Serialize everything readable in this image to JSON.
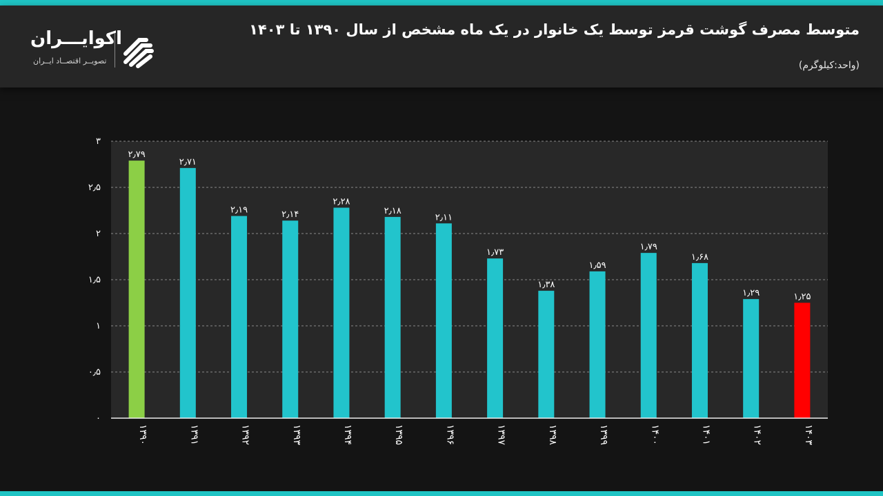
{
  "header": {
    "title": "متوسط مصرف گوشت قرمز توسط یک خانوار در یک ماه مشخص از سال ۱۳۹۰ تا ۱۴۰۳",
    "subtitle": "(واحد:کیلوگرم)"
  },
  "brand": {
    "name": "اکوایـــران",
    "tagline": "تصویــر اقتصــاد ایــران",
    "accent_color": "#1fc4c4"
  },
  "chart_data": {
    "type": "bar",
    "categories": [
      "۱۳۹۰",
      "۱۳۹۱",
      "۱۳۹۲",
      "۱۳۹۳",
      "۱۳۹۴",
      "۱۳۹۵",
      "۱۳۹۶",
      "۱۳۹۷",
      "۱۳۹۸",
      "۱۳۹۹",
      "۱۴۰۰",
      "۱۴۰۱",
      "۱۴۰۲",
      "۱۴۰۳"
    ],
    "values": [
      2.79,
      2.71,
      2.19,
      2.14,
      2.28,
      2.18,
      2.11,
      1.73,
      1.38,
      1.59,
      1.79,
      1.68,
      1.29,
      1.25
    ],
    "value_labels": [
      "۲٫۷۹",
      "۲٫۷۱",
      "۲٫۱۹",
      "۲٫۱۴",
      "۲٫۲۸",
      "۲٫۱۸",
      "۲٫۱۱",
      "۱٫۷۳",
      "۱٫۳۸",
      "۱٫۵۹",
      "۱٫۷۹",
      "۱٫۶۸",
      "۱٫۲۹",
      "۱٫۲۵"
    ],
    "colors": [
      "#8ccf46",
      "#22c4cc",
      "#22c4cc",
      "#22c4cc",
      "#22c4cc",
      "#22c4cc",
      "#22c4cc",
      "#22c4cc",
      "#22c4cc",
      "#22c4cc",
      "#22c4cc",
      "#22c4cc",
      "#22c4cc",
      "#ff0000"
    ],
    "ylim": [
      0,
      3
    ],
    "yticks": [
      0,
      0.5,
      1,
      1.5,
      2,
      2.5,
      3
    ],
    "ytick_labels": [
      "۰",
      "۰٫۵",
      "۱",
      "۱٫۵",
      "۲",
      "۲٫۵",
      "۳"
    ],
    "grid": true,
    "legend": "none"
  }
}
